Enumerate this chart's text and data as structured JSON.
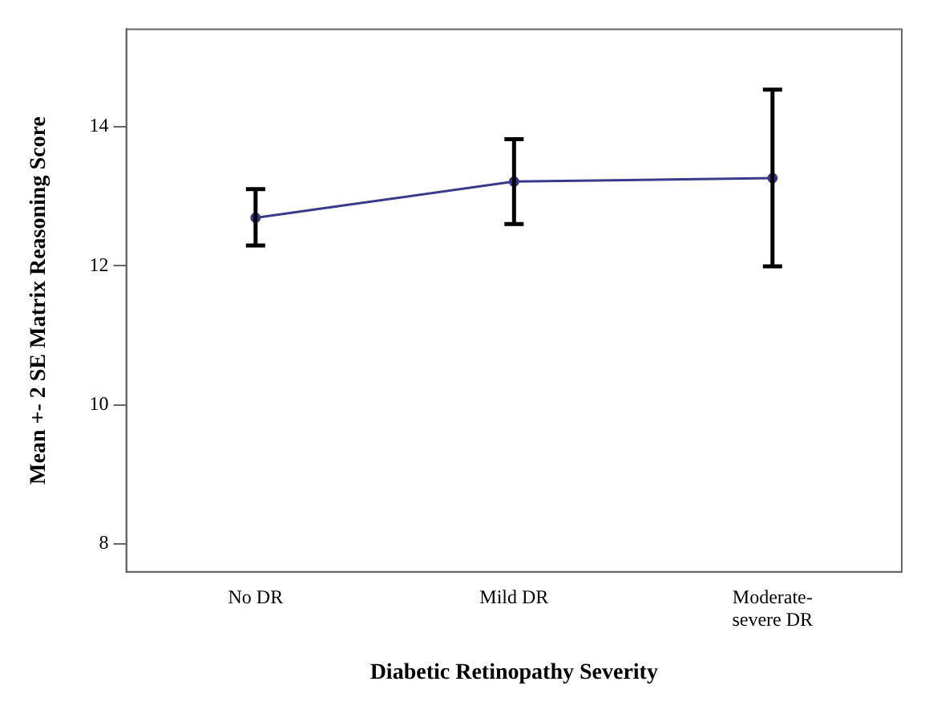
{
  "chart_data": {
    "type": "line",
    "xlabel": "Diabetic Retinopathy Severity",
    "ylabel": "Mean +- 2 SE Matrix Reasoning Score",
    "categories": [
      "No DR",
      "Mild DR",
      "Moderate-severe DR"
    ],
    "series": [
      {
        "color": "#3a3a8a",
        "values": [
          12.69,
          13.21,
          13.26
        ],
        "errors": [
          [
            12.29,
            13.1
          ],
          [
            12.6,
            13.82
          ],
          [
            11.99,
            14.53
          ]
        ]
      }
    ],
    "ylim": [
      7.6,
      15.4
    ],
    "yticks": [
      8,
      10,
      12,
      14
    ],
    "grid": false,
    "legend": false,
    "marker": "circle"
  }
}
